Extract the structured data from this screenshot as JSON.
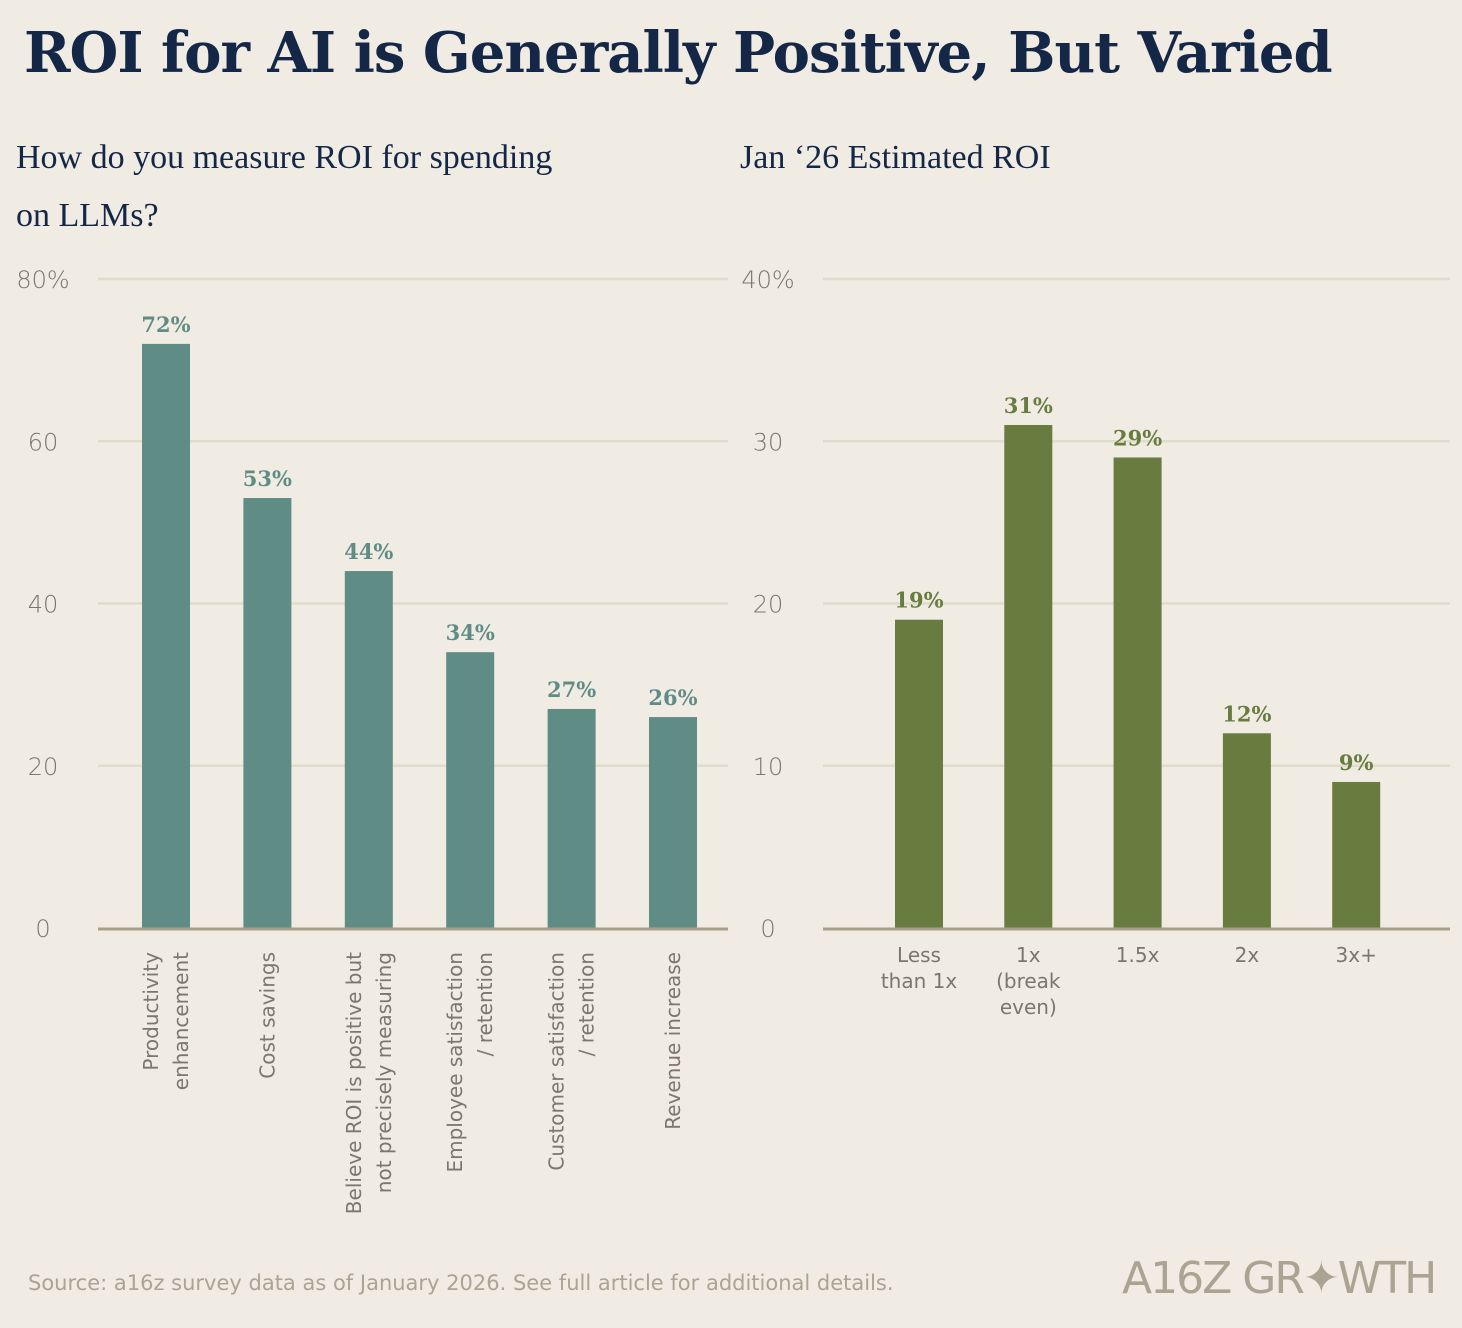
{
  "title": "ROI for AI is Generally Positive, But Varied",
  "source": "Source: a16z survey data as of January 2026. See full article for additional details.",
  "logo_text": "A16Z GROWTH",
  "chart_data": [
    {
      "type": "bar",
      "title_lines": [
        "How do you measure ROI for spending",
        "on LLMs?"
      ],
      "categories": [
        [
          "Productivity",
          "enhancement"
        ],
        [
          "Cost savings"
        ],
        [
          "Believe ROI is positive but",
          "not precisely measuring"
        ],
        [
          "Employee satisfaction",
          "/ retention"
        ],
        [
          "Customer satisfaction",
          "/ retention"
        ],
        [
          "Revenue increase"
        ]
      ],
      "values": [
        72,
        53,
        44,
        34,
        27,
        26
      ],
      "data_labels": [
        "72%",
        "53%",
        "44%",
        "34%",
        "27%",
        "26%"
      ],
      "yticks": [
        0,
        20,
        40,
        60,
        80
      ],
      "ytick_labels": [
        "0",
        "20",
        "40",
        "60",
        "80%"
      ],
      "ylim": [
        0,
        80
      ],
      "grid": true,
      "color": "#5f8d86"
    },
    {
      "type": "bar",
      "title_lines": [
        "Jan ‘26 Estimated ROI"
      ],
      "categories": [
        [
          "Less",
          "than 1x"
        ],
        [
          "1x",
          "(break",
          "even)"
        ],
        [
          "1.5x"
        ],
        [
          "2x"
        ],
        [
          "3x+"
        ]
      ],
      "values": [
        19,
        31,
        29,
        12,
        9
      ],
      "data_labels": [
        "19%",
        "31%",
        "29%",
        "12%",
        "9%"
      ],
      "yticks": [
        0,
        10,
        20,
        30,
        40
      ],
      "ytick_labels": [
        "0",
        "10",
        "20",
        "30",
        "40%"
      ],
      "ylim": [
        0,
        40
      ],
      "grid": true,
      "color": "#677c3e"
    }
  ]
}
